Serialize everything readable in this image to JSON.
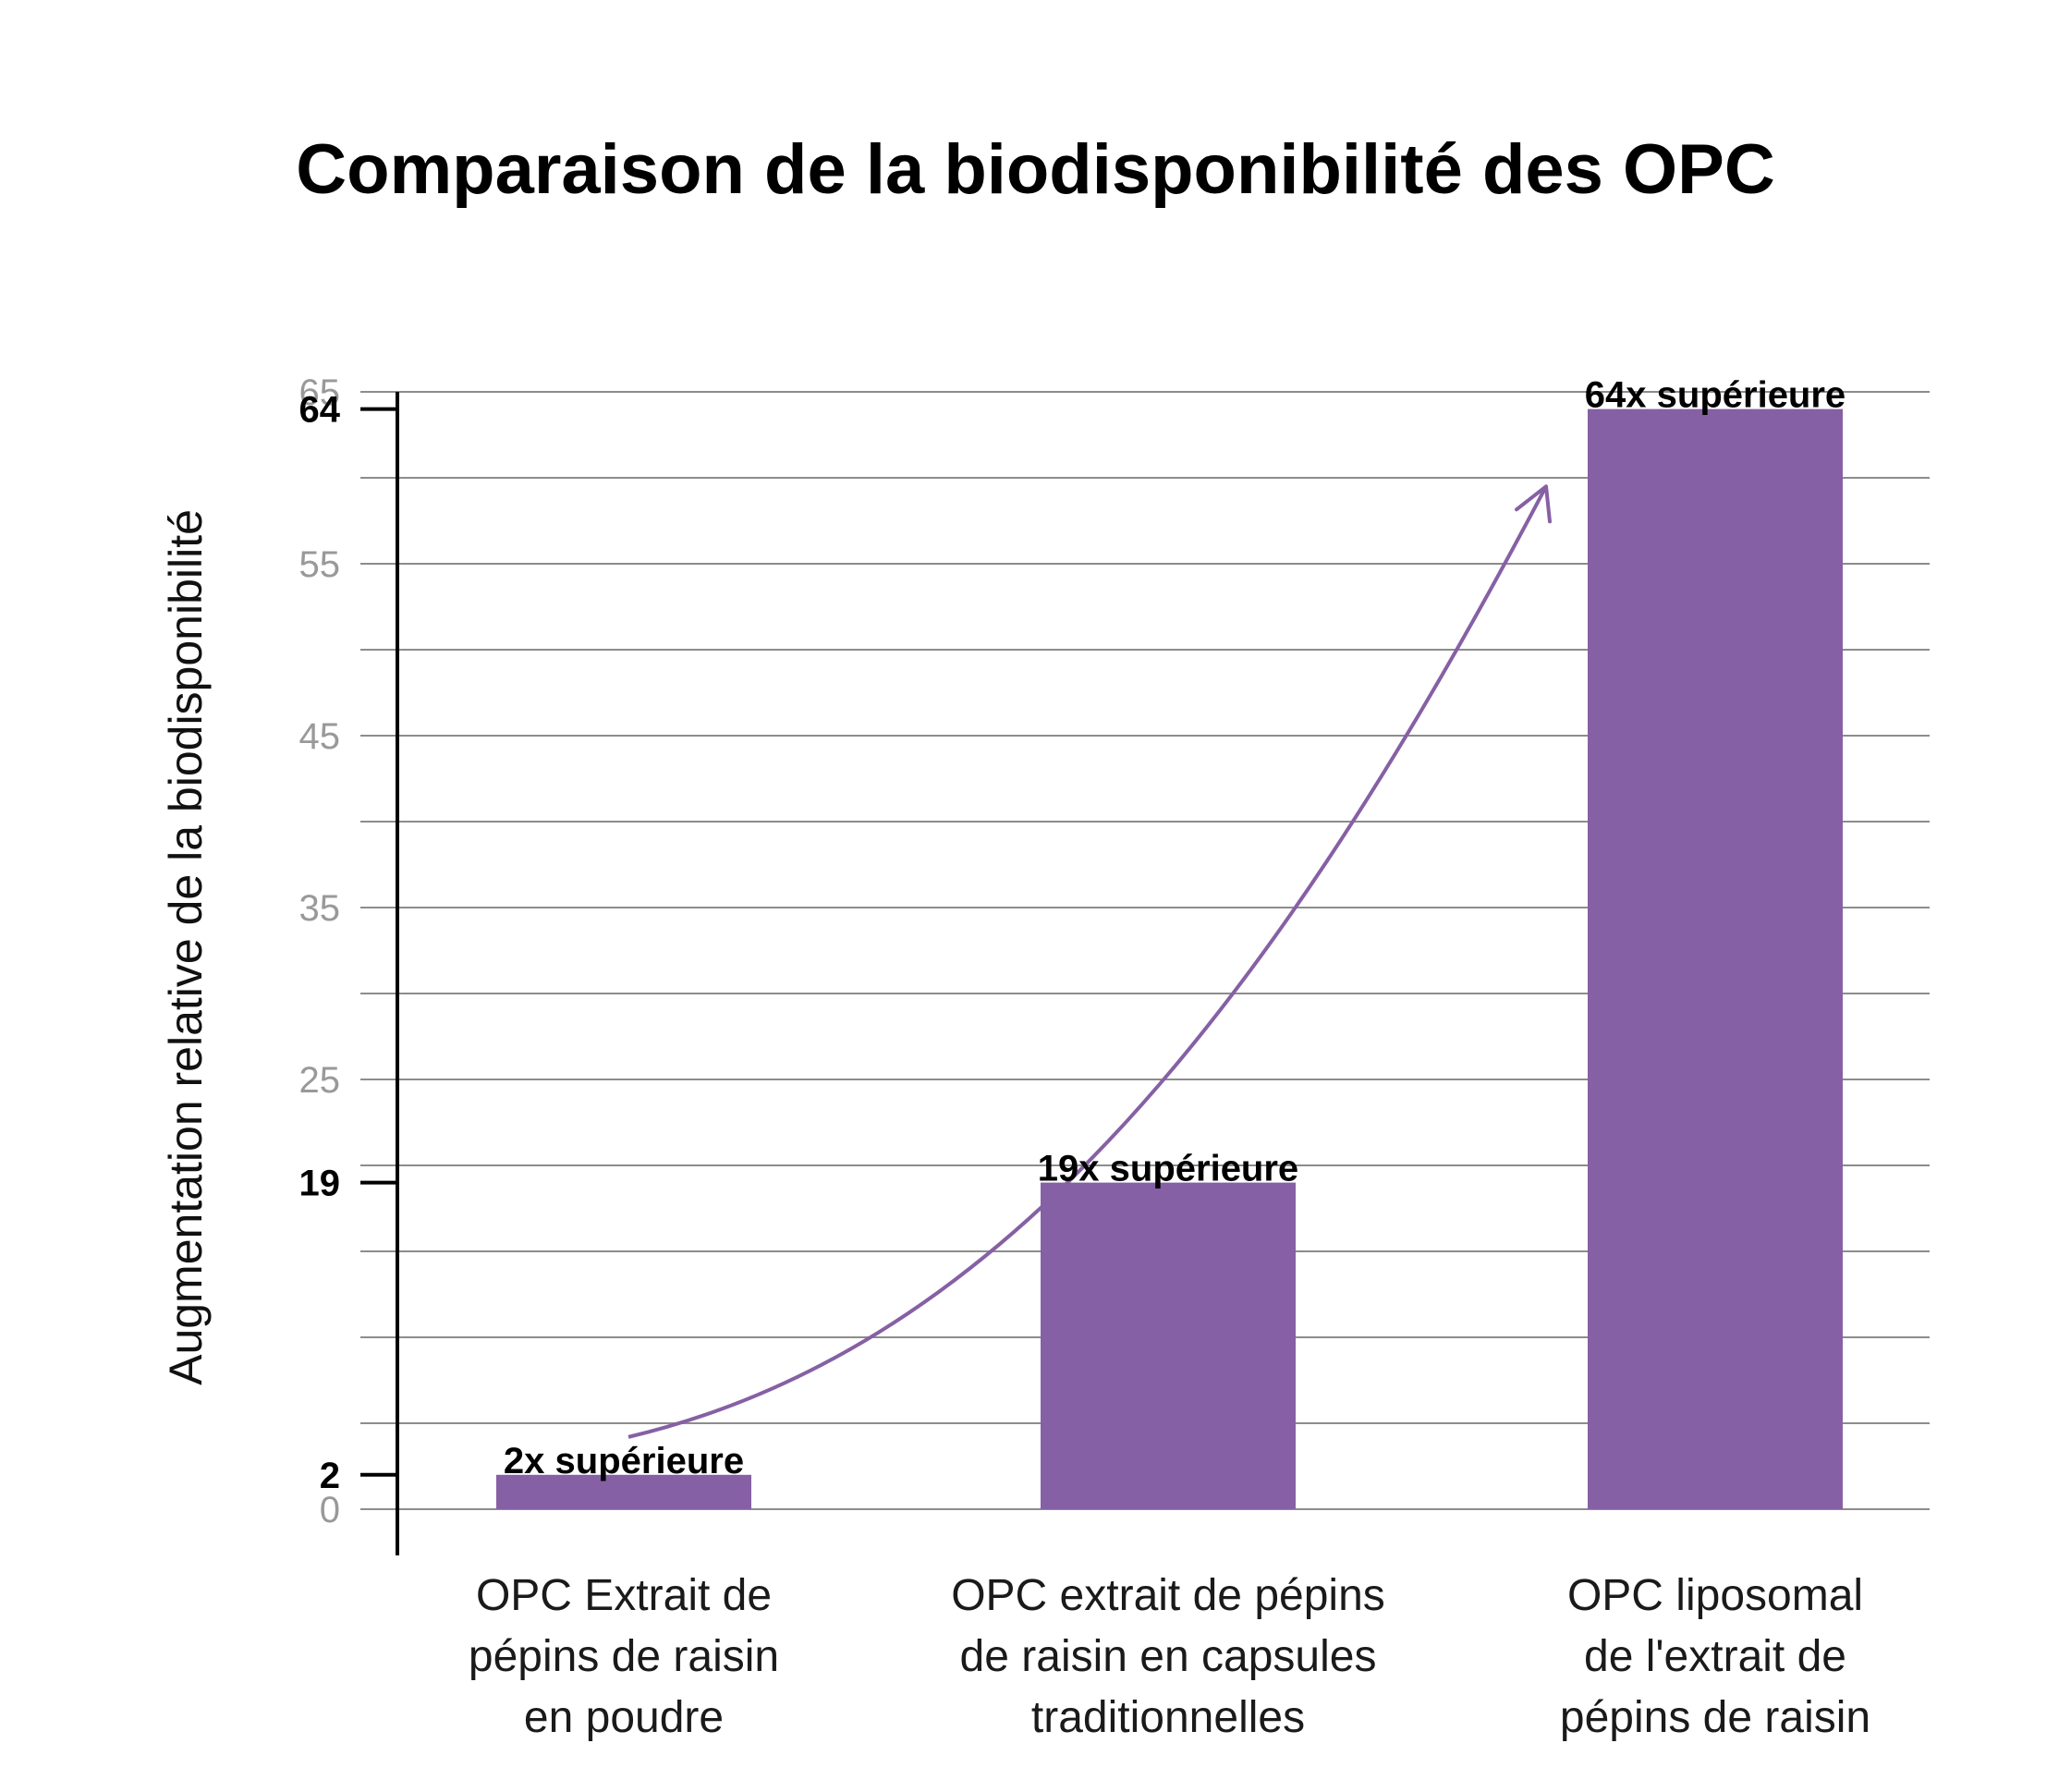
{
  "chart_data": {
    "type": "bar",
    "title": "Comparaison de la biodisponibilité des OPC",
    "ylabel": "Augmentation relative de la biodisponibilité",
    "xlabel": "",
    "ylim": [
      0,
      65
    ],
    "yticks": [
      0,
      25,
      35,
      45,
      55,
      65
    ],
    "highlight_ticks": [
      2,
      19,
      64
    ],
    "grid": true,
    "categories": [
      [
        "OPC Extrait de",
        "pépins de raisin",
        "en poudre"
      ],
      [
        "OPC extrait de pépins",
        "de raisin en capsules",
        "traditionnelles"
      ],
      [
        "OPC liposomal",
        "de l'extrait de",
        "pépins de raisin"
      ]
    ],
    "values": [
      2,
      19,
      64
    ],
    "data_labels": [
      "2x supérieure",
      "19x supérieure",
      "64x supérieure"
    ],
    "bar_color": "#8660a4",
    "arrow_color": "#8660a4",
    "grid_color": "#8c8c8c",
    "tick_color": "#999999"
  }
}
